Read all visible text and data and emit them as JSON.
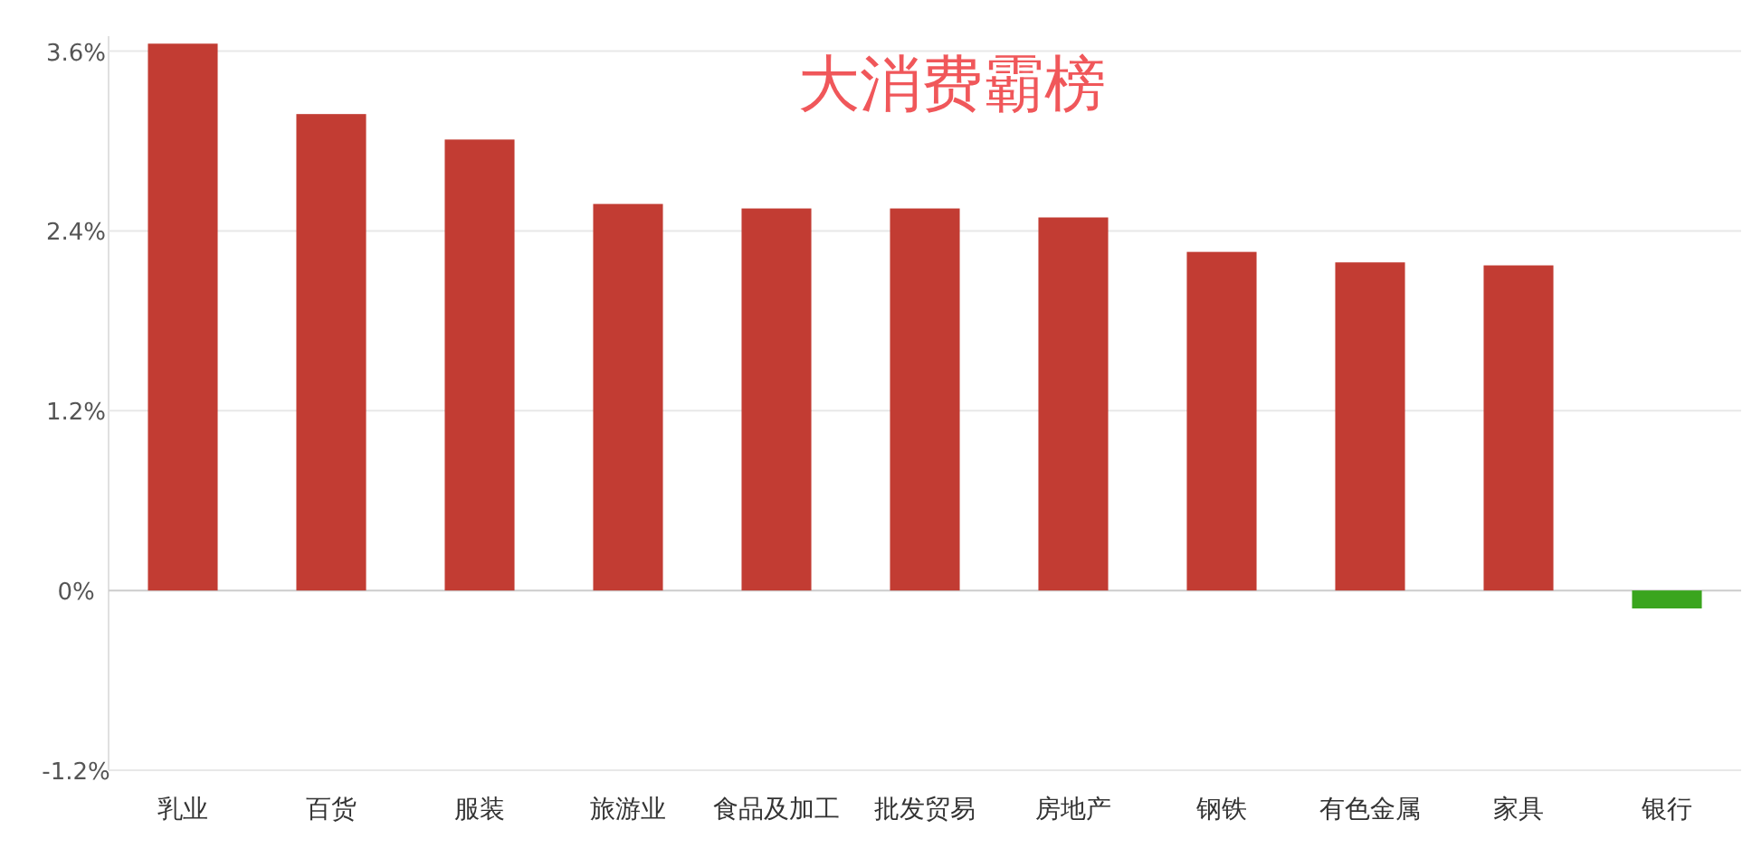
{
  "chart_data": {
    "type": "bar",
    "title": "大消费霸榜",
    "categories": [
      "乳业",
      "百货",
      "服装",
      "旅游业",
      "食品及加工",
      "批发贸易",
      "房地产",
      "钢铁",
      "有色金属",
      "家具",
      "银行"
    ],
    "values": [
      3.65,
      3.18,
      3.01,
      2.58,
      2.55,
      2.55,
      2.49,
      2.26,
      2.19,
      2.17,
      -0.12
    ],
    "colors": [
      "#c23c33",
      "#c23c33",
      "#c23c33",
      "#c23c33",
      "#c23c33",
      "#c23c33",
      "#c23c33",
      "#c23c33",
      "#c23c33",
      "#c23c33",
      "#3aa51e"
    ],
    "ylim": [
      -1.2,
      3.7
    ],
    "yticks": [
      {
        "value": -1.2,
        "label": "-1.2%"
      },
      {
        "value": 0,
        "label": "0%"
      },
      {
        "value": 1.2,
        "label": "1.2%"
      },
      {
        "value": 2.4,
        "label": "2.4%"
      },
      {
        "value": 3.6,
        "label": "3.6%"
      }
    ],
    "grid": "y"
  }
}
